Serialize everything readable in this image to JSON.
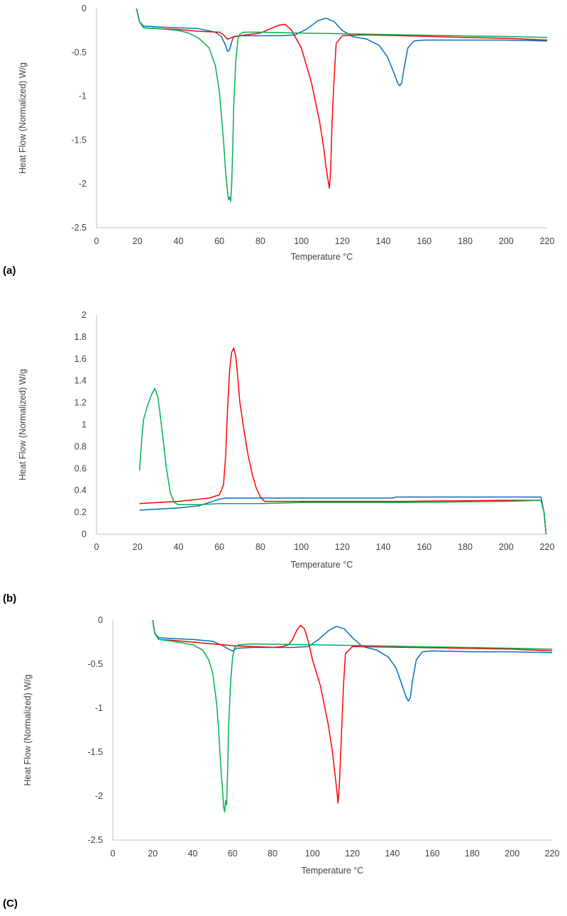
{
  "chart_data": [
    {
      "panel_label": "(a)",
      "type": "line",
      "xlabel": "Temperature  °C",
      "ylabel": "Heat Flow (Normalized) W/g",
      "xlim": [
        0,
        220
      ],
      "ylim": [
        -2.5,
        0
      ],
      "xticks": [
        0,
        20,
        40,
        60,
        80,
        100,
        120,
        140,
        160,
        180,
        200,
        220
      ],
      "yticks": [
        0,
        -0.5,
        -1,
        -1.5,
        -2,
        -2.5
      ],
      "ytick_labels": [
        "0",
        "-0.5",
        "-1",
        "-1.5",
        "-2",
        "-2.5"
      ],
      "grid": false,
      "series": [
        {
          "color": "#0070c0",
          "x": [
            19.5,
            21,
            23,
            30,
            40,
            50,
            58,
            61,
            63,
            64,
            65,
            66,
            67,
            70,
            80,
            90,
            97,
            103,
            108,
            112,
            116,
            120,
            125,
            132,
            138,
            142,
            145,
            147,
            148,
            149,
            150,
            152,
            155,
            160,
            180,
            200,
            220
          ],
          "y": [
            0,
            -0.15,
            -0.2,
            -0.21,
            -0.22,
            -0.23,
            -0.27,
            -0.32,
            -0.42,
            -0.49,
            -0.47,
            -0.38,
            -0.32,
            -0.31,
            -0.31,
            -0.31,
            -0.3,
            -0.23,
            -0.14,
            -0.11,
            -0.15,
            -0.25,
            -0.32,
            -0.35,
            -0.42,
            -0.55,
            -0.72,
            -0.85,
            -0.88,
            -0.85,
            -0.7,
            -0.45,
            -0.37,
            -0.36,
            -0.36,
            -0.36,
            -0.37
          ]
        },
        {
          "color": "#ff0000",
          "x": [
            19.5,
            21,
            23,
            30,
            40,
            50,
            60,
            62,
            64,
            66,
            70,
            80,
            85,
            89,
            92,
            95,
            100,
            105,
            109,
            111,
            112,
            113,
            113.7,
            114.3,
            115,
            116,
            117,
            120,
            130,
            150,
            180,
            200,
            220
          ],
          "y": [
            0,
            -0.15,
            -0.22,
            -0.23,
            -0.24,
            -0.26,
            -0.27,
            -0.3,
            -0.35,
            -0.33,
            -0.31,
            -0.28,
            -0.23,
            -0.19,
            -0.18,
            -0.24,
            -0.45,
            -0.85,
            -1.3,
            -1.6,
            -1.8,
            -1.95,
            -2.05,
            -1.85,
            -1.3,
            -0.8,
            -0.4,
            -0.31,
            -0.3,
            -0.31,
            -0.33,
            -0.34,
            -0.36
          ]
        },
        {
          "color": "#00b050",
          "x": [
            19.5,
            21,
            23,
            30,
            40,
            45,
            50,
            55,
            58,
            60,
            62,
            63,
            64,
            64.5,
            65,
            65.5,
            66,
            66.5,
            67,
            68,
            69,
            70,
            72,
            80,
            100,
            150,
            200,
            220
          ],
          "y": [
            0,
            -0.15,
            -0.22,
            -0.23,
            -0.25,
            -0.28,
            -0.34,
            -0.45,
            -0.65,
            -0.95,
            -1.5,
            -1.85,
            -2.1,
            -2.18,
            -2.15,
            -2.2,
            -2.0,
            -1.6,
            -1.1,
            -0.6,
            -0.35,
            -0.29,
            -0.27,
            -0.27,
            -0.28,
            -0.3,
            -0.32,
            -0.33
          ]
        }
      ]
    },
    {
      "panel_label": "(b)",
      "type": "line",
      "xlabel": "Temperature  °C",
      "ylabel": "Heat Flow (Normalized) W/g",
      "xlim": [
        0,
        220
      ],
      "ylim": [
        0,
        2
      ],
      "xticks": [
        0,
        20,
        40,
        60,
        80,
        100,
        120,
        140,
        160,
        180,
        200,
        220
      ],
      "yticks": [
        0,
        0.2,
        0.4,
        0.6,
        0.8,
        1,
        1.2,
        1.4,
        1.6,
        1.8,
        2
      ],
      "ytick_labels": [
        "0",
        "0.2",
        "0.4",
        "0.6",
        "0.8",
        "1",
        "1.2",
        "1.4",
        "1.6",
        "1.8",
        "2"
      ],
      "grid": false,
      "series": [
        {
          "color": "#0070c0",
          "x": [
            21,
            30,
            40,
            50,
            55,
            60,
            63,
            70,
            100,
            145,
            146,
            200,
            217,
            218.5,
            219.5
          ],
          "y": [
            0.22,
            0.23,
            0.24,
            0.26,
            0.29,
            0.32,
            0.33,
            0.33,
            0.33,
            0.33,
            0.34,
            0.34,
            0.34,
            0.2,
            0
          ]
        },
        {
          "color": "#ff0000",
          "x": [
            21,
            30,
            40,
            50,
            55,
            60,
            62,
            63,
            64,
            65,
            66,
            67,
            68,
            69,
            70,
            72,
            74,
            76,
            78,
            80,
            82,
            90,
            120,
            150,
            200,
            217,
            218.5,
            219.5
          ],
          "y": [
            0.28,
            0.29,
            0.3,
            0.32,
            0.33,
            0.36,
            0.45,
            0.7,
            1.15,
            1.5,
            1.66,
            1.7,
            1.62,
            1.42,
            1.2,
            0.95,
            0.72,
            0.55,
            0.42,
            0.34,
            0.3,
            0.3,
            0.3,
            0.3,
            0.31,
            0.31,
            0.2,
            0
          ]
        },
        {
          "color": "#00b050",
          "x": [
            21,
            22,
            23,
            25,
            27,
            28.5,
            30,
            32,
            34,
            36,
            38,
            40,
            50,
            60,
            80,
            100,
            150,
            200,
            217,
            218.5,
            219.5
          ],
          "y": [
            0.58,
            0.85,
            1.05,
            1.18,
            1.28,
            1.33,
            1.25,
            0.95,
            0.62,
            0.38,
            0.29,
            0.27,
            0.27,
            0.28,
            0.28,
            0.29,
            0.29,
            0.3,
            0.31,
            0.2,
            0
          ]
        }
      ]
    },
    {
      "panel_label": "(C)",
      "type": "line",
      "xlabel": "Temperature  °C",
      "ylabel": "Heat Flow (Normalized) W/g",
      "xlim": [
        0,
        220
      ],
      "ylim": [
        -2.5,
        0
      ],
      "xticks": [
        0,
        20,
        40,
        60,
        80,
        100,
        120,
        140,
        160,
        180,
        200,
        220
      ],
      "yticks": [
        0,
        -0.5,
        -1,
        -1.5,
        -2,
        -2.5
      ],
      "ytick_labels": [
        "0",
        "-0.5",
        "-1",
        "-1.5",
        "-2",
        "-2.5"
      ],
      "grid": false,
      "series": [
        {
          "color": "#0070c0",
          "x": [
            20,
            21,
            23,
            30,
            40,
            50,
            55,
            58,
            60,
            62,
            70,
            90,
            98,
            103,
            108,
            112,
            116,
            120,
            125,
            132,
            138,
            142,
            145,
            147,
            148,
            149,
            150,
            152,
            155,
            160,
            180,
            200,
            220
          ],
          "y": [
            0,
            -0.15,
            -0.2,
            -0.21,
            -0.22,
            -0.24,
            -0.29,
            -0.33,
            -0.35,
            -0.32,
            -0.31,
            -0.31,
            -0.3,
            -0.22,
            -0.12,
            -0.07,
            -0.1,
            -0.2,
            -0.3,
            -0.34,
            -0.42,
            -0.55,
            -0.75,
            -0.88,
            -0.92,
            -0.88,
            -0.7,
            -0.45,
            -0.36,
            -0.35,
            -0.36,
            -0.36,
            -0.37
          ]
        },
        {
          "color": "#ff0000",
          "x": [
            20,
            21,
            23,
            30,
            40,
            50,
            60,
            70,
            80,
            85,
            88,
            90,
            92,
            94,
            96,
            98,
            100,
            104,
            108,
            110,
            111,
            112,
            112.8,
            113.5,
            114.5,
            115.5,
            116.5,
            120,
            150,
            200,
            220
          ],
          "y": [
            0,
            -0.15,
            -0.22,
            -0.23,
            -0.25,
            -0.27,
            -0.29,
            -0.3,
            -0.31,
            -0.3,
            -0.28,
            -0.22,
            -0.12,
            -0.06,
            -0.1,
            -0.25,
            -0.45,
            -0.75,
            -1.2,
            -1.5,
            -1.7,
            -1.9,
            -2.08,
            -1.85,
            -1.3,
            -0.75,
            -0.38,
            -0.3,
            -0.31,
            -0.33,
            -0.35
          ]
        },
        {
          "color": "#00b050",
          "x": [
            20,
            21,
            23,
            30,
            40,
            45,
            48,
            50,
            52,
            53,
            54,
            55,
            55.5,
            56,
            56.5,
            57,
            57.5,
            58,
            59,
            60,
            61,
            63,
            70,
            100,
            150,
            200,
            220
          ],
          "y": [
            0,
            -0.15,
            -0.22,
            -0.24,
            -0.28,
            -0.34,
            -0.45,
            -0.6,
            -0.95,
            -1.25,
            -1.65,
            -1.95,
            -2.12,
            -2.18,
            -2.05,
            -2.1,
            -1.7,
            -1.2,
            -0.7,
            -0.42,
            -0.31,
            -0.28,
            -0.27,
            -0.28,
            -0.3,
            -0.32,
            -0.33
          ]
        }
      ]
    }
  ]
}
